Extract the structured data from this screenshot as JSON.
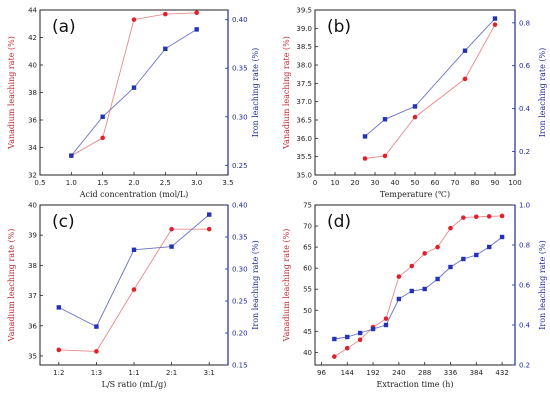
{
  "colors": {
    "vanadium": "#e0212b",
    "vanadium_line": "#e88a8e",
    "iron": "#2431b8",
    "iron_line": "#6a72c9",
    "axis_right": "#1f2a99"
  },
  "chart_data": [
    {
      "type": "line",
      "panel_label": "(a)",
      "xlabel": "Acid concentration (mol/L)",
      "ylabel": "Vanadium leaching rate (%)",
      "y2label": "Iron leaching rate (%)",
      "xlim": [
        0.5,
        3.5
      ],
      "xticks": [
        0.5,
        1.0,
        1.5,
        2.0,
        2.5,
        3.0,
        3.5
      ],
      "xtick_labels": [
        "0.5",
        "1.0",
        "1.5",
        "2.0",
        "2.5",
        "3.0",
        "3.5"
      ],
      "ylim": [
        32,
        44
      ],
      "yticks": [
        32,
        34,
        36,
        38,
        40,
        42,
        44
      ],
      "y2lim": [
        0.24,
        0.41
      ],
      "y2ticks": [
        0.25,
        0.3,
        0.35,
        0.4
      ],
      "y2tick_labels": [
        "0.25",
        "0.30",
        "0.35",
        "0.40"
      ],
      "series": [
        {
          "axis": "left",
          "x": [
            1.0,
            1.5,
            2.0,
            2.5,
            3.0
          ],
          "values": [
            33.4,
            34.7,
            43.3,
            43.7,
            43.8
          ]
        },
        {
          "axis": "right",
          "x": [
            1.0,
            1.5,
            2.0,
            2.5,
            3.0
          ],
          "values": [
            0.26,
            0.3,
            0.33,
            0.37,
            0.39
          ]
        }
      ]
    },
    {
      "type": "line",
      "panel_label": "(b)",
      "xlabel": "Temperature (℃)",
      "ylabel": "Vanadium leaching rate (%)",
      "y2label": "Iron leaching rate (%)",
      "xlim": [
        0,
        100
      ],
      "xticks": [
        0,
        10,
        20,
        30,
        40,
        50,
        60,
        70,
        80,
        90,
        100
      ],
      "xtick_labels": [
        "0",
        "10",
        "20",
        "30",
        "40",
        "50",
        "60",
        "70",
        "80",
        "90",
        "100"
      ],
      "ylim": [
        35.0,
        39.5
      ],
      "yticks": [
        35.0,
        35.5,
        36.0,
        36.5,
        37.0,
        37.5,
        38.0,
        38.5,
        39.0,
        39.5
      ],
      "y2lim": [
        0.09,
        0.86
      ],
      "y2ticks": [
        0.2,
        0.4,
        0.6,
        0.8
      ],
      "y2tick_labels": [
        "0.2",
        "0.4",
        "0.6",
        "0.8"
      ],
      "series": [
        {
          "axis": "left",
          "x": [
            25,
            35,
            50,
            75,
            90
          ],
          "values": [
            35.45,
            35.52,
            36.58,
            37.62,
            39.1
          ]
        },
        {
          "axis": "right",
          "x": [
            25,
            35,
            50,
            75,
            90
          ],
          "values": [
            0.27,
            0.35,
            0.41,
            0.67,
            0.82
          ]
        }
      ]
    },
    {
      "type": "line",
      "panel_label": "(c)",
      "xlabel": "L/S ratio (mL/g)",
      "ylabel": "Vanadium leaching rate (%)",
      "y2label": "Iron leaching rate (%)",
      "categories": [
        "1:2",
        "1:3",
        "1:1",
        "2:1",
        "3:1"
      ],
      "ylim": [
        34.7,
        40.0
      ],
      "yticks": [
        35,
        36,
        37,
        38,
        39,
        40
      ],
      "y2lim": [
        0.15,
        0.4
      ],
      "y2ticks": [
        0.15,
        0.2,
        0.25,
        0.3,
        0.35,
        0.4
      ],
      "y2tick_labels": [
        "0.15",
        "0.20",
        "0.25",
        "0.30",
        "0.35",
        "0.40"
      ],
      "series": [
        {
          "axis": "left",
          "values": [
            35.2,
            35.15,
            37.2,
            39.2,
            39.2
          ]
        },
        {
          "axis": "right",
          "values": [
            0.24,
            0.21,
            0.33,
            0.335,
            0.385
          ]
        }
      ]
    },
    {
      "type": "line",
      "panel_label": "(d)",
      "xlabel": "Extraction time (h)",
      "ylabel": "Vanadium leaching rate (%)",
      "y2label": "Iron leaching rate (%)",
      "xlim": [
        84,
        456
      ],
      "xticks": [
        96,
        144,
        192,
        240,
        288,
        336,
        384,
        432
      ],
      "xtick_labels": [
        "96",
        "144",
        "192",
        "240",
        "288",
        "336",
        "384",
        "432"
      ],
      "ylim": [
        37,
        75
      ],
      "yticks": [
        40,
        45,
        50,
        55,
        60,
        65,
        70,
        75
      ],
      "y2lim": [
        0.2,
        1.0
      ],
      "y2ticks": [
        0.2,
        0.4,
        0.6,
        0.8,
        1.0
      ],
      "y2tick_labels": [
        "0.2",
        "0.4",
        "0.6",
        "0.8",
        "1.0"
      ],
      "series": [
        {
          "axis": "left",
          "x": [
            120,
            144,
            168,
            192,
            216,
            240,
            264,
            288,
            312,
            336,
            360,
            384,
            408,
            432
          ],
          "values": [
            39,
            41,
            43,
            46,
            48,
            58,
            60.5,
            63.5,
            65,
            69.5,
            72,
            72.2,
            72.3,
            72.4
          ]
        },
        {
          "axis": "right",
          "x": [
            120,
            144,
            168,
            192,
            216,
            240,
            264,
            288,
            312,
            336,
            360,
            384,
            408,
            432
          ],
          "values": [
            0.33,
            0.34,
            0.36,
            0.38,
            0.4,
            0.53,
            0.57,
            0.58,
            0.63,
            0.69,
            0.73,
            0.75,
            0.79,
            0.84
          ]
        }
      ]
    }
  ]
}
